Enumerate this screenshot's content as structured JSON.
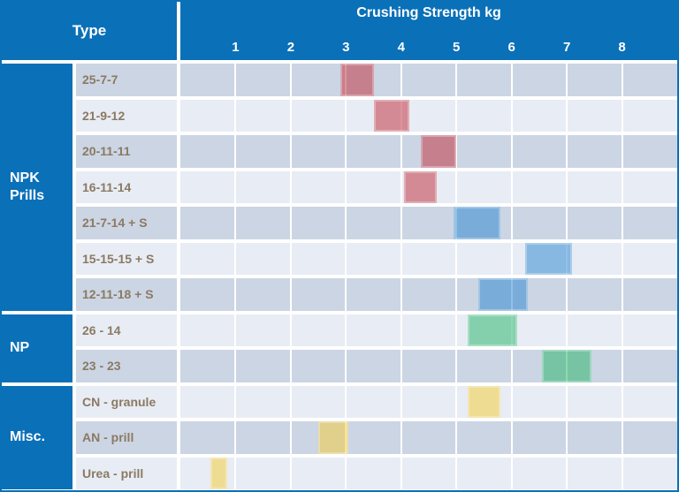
{
  "header": {
    "type_label": "Type",
    "axis_title": "Crushing Strength kg"
  },
  "axis": {
    "min": 0,
    "max": 9,
    "ticks": [
      "1",
      "2",
      "3",
      "4",
      "5",
      "6",
      "7",
      "8"
    ]
  },
  "colors": {
    "header_blue": "#0a70b8",
    "row_dark": "#ccd5e4",
    "row_light": "#e8ecf4",
    "label_text": "#8a7a63",
    "bar_red": "rgba(192,48,61,0.52)",
    "bar_blue": "rgba(38,131,206,0.50)",
    "bar_green": "rgba(32,179,100,0.50)",
    "bar_yellow": "rgba(246,204,50,0.50)"
  },
  "chart_data": {
    "type": "bar",
    "subtype": "horizontal-range-bars",
    "title": "Crushing Strength kg",
    "xlabel": "Crushing Strength kg",
    "ylabel": "Type",
    "xlim": [
      0,
      9
    ],
    "xticks": [
      1,
      2,
      3,
      4,
      5,
      6,
      7,
      8
    ],
    "grid": "vertical-white-lines",
    "legend": "none",
    "groups": [
      {
        "label": "NPK Prills",
        "rows": [
          {
            "label": "25-7-7",
            "range": [
              2.9,
              3.5
            ],
            "color": "red"
          },
          {
            "label": "21-9-12",
            "range": [
              3.5,
              4.15
            ],
            "color": "red"
          },
          {
            "label": "20-11-11",
            "range": [
              4.35,
              5.0
            ],
            "color": "red"
          },
          {
            "label": "16-11-14",
            "range": [
              4.05,
              4.65
            ],
            "color": "red"
          },
          {
            "label": "21-7-14 + S",
            "range": [
              4.95,
              5.8
            ],
            "color": "blue"
          },
          {
            "label": "15-15-15 + S",
            "range": [
              6.25,
              7.1
            ],
            "color": "blue"
          },
          {
            "label": "12-11-18 + S",
            "range": [
              5.4,
              6.3
            ],
            "color": "blue"
          }
        ]
      },
      {
        "label": "NP",
        "rows": [
          {
            "label": "26 - 14",
            "range": [
              5.2,
              6.1
            ],
            "color": "green"
          },
          {
            "label": "23 - 23",
            "range": [
              6.55,
              7.45
            ],
            "color": "green"
          }
        ]
      },
      {
        "label": "Misc.",
        "rows": [
          {
            "label": "CN - granule",
            "range": [
              5.2,
              5.8
            ],
            "color": "yellow"
          },
          {
            "label": "AN - prill",
            "range": [
              2.5,
              3.05
            ],
            "color": "yellow"
          },
          {
            "label": "Urea - prill",
            "range": [
              0.55,
              0.85
            ],
            "color": "yellow"
          }
        ]
      }
    ]
  }
}
